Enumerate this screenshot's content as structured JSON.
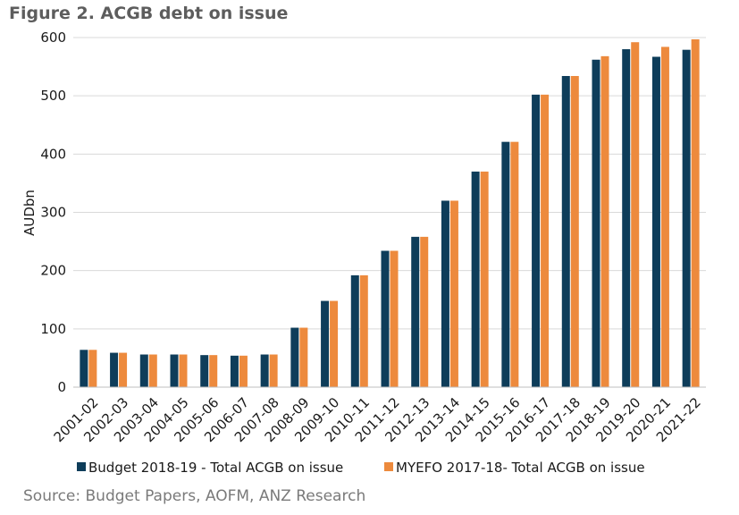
{
  "chart_data": {
    "type": "bar",
    "title": "Figure 2. ACGB debt on issue",
    "ylabel": "AUDbn",
    "xlabel": "",
    "ylim": [
      0,
      600
    ],
    "yticks": [
      0,
      100,
      200,
      300,
      400,
      500,
      600
    ],
    "grid": true,
    "legend_position": "bottom",
    "categories": [
      "2001-02",
      "2002-03",
      "2003-04",
      "2004-05",
      "2005-06",
      "2006-07",
      "2007-08",
      "2008-09",
      "2009-10",
      "2010-11",
      "2011-12",
      "2012-13",
      "2013-14",
      "2014-15",
      "2015-16",
      "2016-17",
      "2017-18",
      "2018-19",
      "2019-20",
      "2020-21",
      "2021-22"
    ],
    "series": [
      {
        "name": "Budget 2018-19 - Total ACGB on issue",
        "color": "#0e3d5a",
        "values": [
          64,
          59,
          56,
          56,
          55,
          54,
          56,
          102,
          148,
          192,
          234,
          258,
          320,
          370,
          421,
          502,
          534,
          562,
          580,
          567,
          579
        ]
      },
      {
        "name": "MYEFO 2017-18- Total ACGB on issue",
        "color": "#ed8a3d",
        "values": [
          64,
          59,
          56,
          56,
          55,
          54,
          56,
          102,
          148,
          192,
          234,
          258,
          320,
          370,
          421,
          502,
          534,
          568,
          592,
          584,
          597
        ]
      }
    ],
    "source": "Source: Budget Papers, AOFM, ANZ Research"
  }
}
